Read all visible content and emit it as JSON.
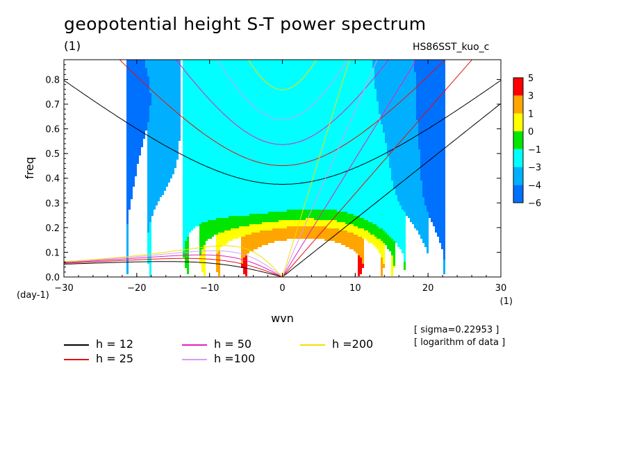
{
  "title": "geopotential height S-T power spectrum",
  "subtitle_left": "(1)",
  "subtitle_right": "HS86SST_kuo_c",
  "notes": [
    "[ sigma=0.22953 ]",
    "[ logarithm of data ]"
  ],
  "legend": [
    {
      "label": "h = 12",
      "color": "#000000"
    },
    {
      "label": "h = 25",
      "color": "#e01010"
    },
    {
      "label": "h = 50",
      "color": "#e020c0"
    },
    {
      "label": "h =100",
      "color": "#d89cf0"
    },
    {
      "label": "h =200",
      "color": "#f0e000"
    }
  ],
  "colorbar": {
    "labels": [
      "5",
      "3",
      "1",
      "0",
      "−1",
      "−3",
      "−4",
      "−6"
    ],
    "colors": [
      "#ff0000",
      "#ffa500",
      "#ffff00",
      "#00e600",
      "#00ffff",
      "#00b0ff",
      "#0070ff"
    ]
  },
  "chart_data": {
    "type": "heatmap",
    "title": "geopotential height S-T power spectrum",
    "xlabel": "wvn",
    "ylabel": "freq",
    "x_unit_label": "(1)",
    "y_unit_label": "(day-1)",
    "xlim": [
      -30,
      30
    ],
    "ylim": [
      0,
      0.88
    ],
    "xticks": [
      -30,
      -20,
      -10,
      0,
      10,
      20,
      30
    ],
    "yticks": [
      0.0,
      0.1,
      0.2,
      0.3,
      0.4,
      0.5,
      0.6,
      0.7,
      0.8
    ],
    "xtick_labels": [
      "−30",
      "−20",
      "−10",
      "0",
      "10",
      "20",
      "30"
    ],
    "ytick_labels": [
      "0.0",
      "0.1",
      "0.2",
      "0.3",
      "0.4",
      "0.5",
      "0.6",
      "0.7",
      "0.8"
    ],
    "contour_levels": [
      -6,
      -4,
      -3,
      -1,
      0,
      1,
      3,
      5
    ],
    "dispersion_curves": {
      "h_values": [
        12,
        25,
        50,
        100,
        200
      ]
    }
  }
}
